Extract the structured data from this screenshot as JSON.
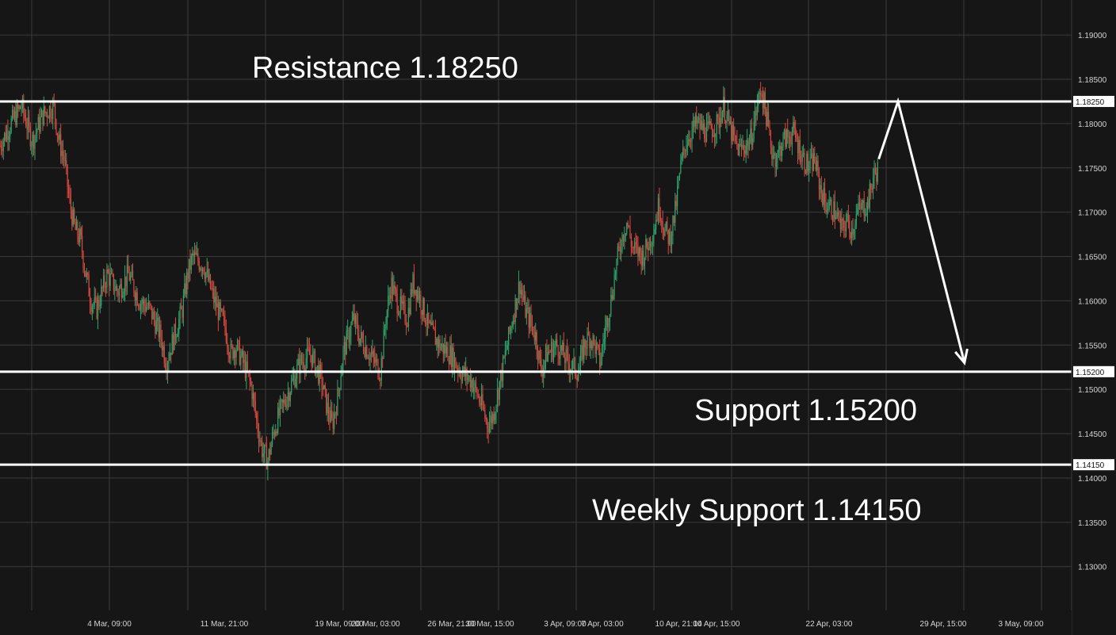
{
  "chart_data": {
    "type": "candlestick",
    "y_ticks": [
      {
        "value": 1.13,
        "label": "1.13000"
      },
      {
        "value": 1.135,
        "label": "1.13500"
      },
      {
        "value": 1.14,
        "label": "1.14000"
      },
      {
        "value": 1.145,
        "label": "1.14500"
      },
      {
        "value": 1.15,
        "label": "1.15000"
      },
      {
        "value": 1.155,
        "label": "1.15500"
      },
      {
        "value": 1.16,
        "label": "1.16000"
      },
      {
        "value": 1.165,
        "label": "1.16500"
      },
      {
        "value": 1.17,
        "label": "1.17000"
      },
      {
        "value": 1.175,
        "label": "1.17500"
      },
      {
        "value": 1.18,
        "label": "1.18000"
      },
      {
        "value": 1.185,
        "label": "1.18500"
      },
      {
        "value": 1.19,
        "label": "1.19000"
      }
    ],
    "ylim": [
      1.1255,
      1.1935
    ],
    "x_ticks": [
      "4 Mar, 09:00",
      "11 Mar, 21:00",
      "19 Mar, 09:00",
      "20 Mar, 03:00",
      "26 Mar, 21:00",
      "30 Mar, 15:00",
      "3 Apr, 09:00",
      "7 Apr, 03:00",
      "10 Apr, 21:00",
      "14 Apr, 15:00",
      "22 Apr, 03:00",
      "29 Apr, 15:00",
      "3 May, 09:00"
    ],
    "levels": [
      {
        "name": "resistance",
        "value": 1.1825,
        "badge": "1.18250",
        "annotation": "Resistance 1.18250"
      },
      {
        "name": "support",
        "value": 1.152,
        "badge": "1.15200",
        "annotation": "Support 1.15200"
      },
      {
        "name": "weekly-support",
        "value": 1.1415,
        "badge": "1.14150",
        "annotation": "Weekly Support 1.14150"
      }
    ],
    "price_path": [
      {
        "x": 0,
        "y": 1.1775
      },
      {
        "x": 0.01,
        "y": 1.18
      },
      {
        "x": 0.02,
        "y": 1.182
      },
      {
        "x": 0.03,
        "y": 1.178
      },
      {
        "x": 0.04,
        "y": 1.181
      },
      {
        "x": 0.05,
        "y": 1.182
      },
      {
        "x": 0.055,
        "y": 1.178
      },
      {
        "x": 0.06,
        "y": 1.176
      },
      {
        "x": 0.065,
        "y": 1.171
      },
      {
        "x": 0.07,
        "y": 1.168
      },
      {
        "x": 0.075,
        "y": 1.167
      },
      {
        "x": 0.08,
        "y": 1.163
      },
      {
        "x": 0.085,
        "y": 1.16
      },
      {
        "x": 0.09,
        "y": 1.159
      },
      {
        "x": 0.1,
        "y": 1.163
      },
      {
        "x": 0.11,
        "y": 1.161
      },
      {
        "x": 0.12,
        "y": 1.163
      },
      {
        "x": 0.13,
        "y": 1.16
      },
      {
        "x": 0.14,
        "y": 1.159
      },
      {
        "x": 0.15,
        "y": 1.156
      },
      {
        "x": 0.155,
        "y": 1.153
      },
      {
        "x": 0.16,
        "y": 1.155
      },
      {
        "x": 0.17,
        "y": 1.159
      },
      {
        "x": 0.175,
        "y": 1.163
      },
      {
        "x": 0.18,
        "y": 1.165
      },
      {
        "x": 0.19,
        "y": 1.164
      },
      {
        "x": 0.2,
        "y": 1.16
      },
      {
        "x": 0.21,
        "y": 1.157
      },
      {
        "x": 0.215,
        "y": 1.154
      },
      {
        "x": 0.22,
        "y": 1.155
      },
      {
        "x": 0.23,
        "y": 1.152
      },
      {
        "x": 0.235,
        "y": 1.15
      },
      {
        "x": 0.24,
        "y": 1.146
      },
      {
        "x": 0.245,
        "y": 1.143
      },
      {
        "x": 0.25,
        "y": 1.142
      },
      {
        "x": 0.255,
        "y": 1.145
      },
      {
        "x": 0.26,
        "y": 1.147
      },
      {
        "x": 0.27,
        "y": 1.15
      },
      {
        "x": 0.28,
        "y": 1.153
      },
      {
        "x": 0.29,
        "y": 1.154
      },
      {
        "x": 0.3,
        "y": 1.151
      },
      {
        "x": 0.305,
        "y": 1.148
      },
      {
        "x": 0.31,
        "y": 1.146
      },
      {
        "x": 0.315,
        "y": 1.149
      },
      {
        "x": 0.32,
        "y": 1.154
      },
      {
        "x": 0.33,
        "y": 1.158
      },
      {
        "x": 0.335,
        "y": 1.156
      },
      {
        "x": 0.34,
        "y": 1.155
      },
      {
        "x": 0.35,
        "y": 1.153
      },
      {
        "x": 0.355,
        "y": 1.152
      },
      {
        "x": 0.36,
        "y": 1.158
      },
      {
        "x": 0.365,
        "y": 1.162
      },
      {
        "x": 0.37,
        "y": 1.16
      },
      {
        "x": 0.38,
        "y": 1.158
      },
      {
        "x": 0.385,
        "y": 1.162
      },
      {
        "x": 0.39,
        "y": 1.161
      },
      {
        "x": 0.4,
        "y": 1.157
      },
      {
        "x": 0.41,
        "y": 1.155
      },
      {
        "x": 0.42,
        "y": 1.154
      },
      {
        "x": 0.43,
        "y": 1.152
      },
      {
        "x": 0.44,
        "y": 1.151
      },
      {
        "x": 0.45,
        "y": 1.148
      },
      {
        "x": 0.455,
        "y": 1.146
      },
      {
        "x": 0.46,
        "y": 1.147
      },
      {
        "x": 0.47,
        "y": 1.153
      },
      {
        "x": 0.475,
        "y": 1.156
      },
      {
        "x": 0.48,
        "y": 1.159
      },
      {
        "x": 0.485,
        "y": 1.162
      },
      {
        "x": 0.49,
        "y": 1.159
      },
      {
        "x": 0.5,
        "y": 1.156
      },
      {
        "x": 0.505,
        "y": 1.152
      },
      {
        "x": 0.51,
        "y": 1.154
      },
      {
        "x": 0.52,
        "y": 1.155
      },
      {
        "x": 0.53,
        "y": 1.153
      },
      {
        "x": 0.54,
        "y": 1.152
      },
      {
        "x": 0.545,
        "y": 1.155
      },
      {
        "x": 0.55,
        "y": 1.156
      },
      {
        "x": 0.555,
        "y": 1.155
      },
      {
        "x": 0.56,
        "y": 1.153
      },
      {
        "x": 0.565,
        "y": 1.157
      },
      {
        "x": 0.57,
        "y": 1.16
      },
      {
        "x": 0.575,
        "y": 1.164
      },
      {
        "x": 0.58,
        "y": 1.167
      },
      {
        "x": 0.585,
        "y": 1.169
      },
      {
        "x": 0.59,
        "y": 1.166
      },
      {
        "x": 0.6,
        "y": 1.165
      },
      {
        "x": 0.61,
        "y": 1.168
      },
      {
        "x": 0.615,
        "y": 1.171
      },
      {
        "x": 0.62,
        "y": 1.168
      },
      {
        "x": 0.625,
        "y": 1.167
      },
      {
        "x": 0.63,
        "y": 1.17
      },
      {
        "x": 0.635,
        "y": 1.175
      },
      {
        "x": 0.64,
        "y": 1.178
      },
      {
        "x": 0.65,
        "y": 1.18
      },
      {
        "x": 0.66,
        "y": 1.179
      },
      {
        "x": 0.67,
        "y": 1.18
      },
      {
        "x": 0.675,
        "y": 1.182
      },
      {
        "x": 0.68,
        "y": 1.18
      },
      {
        "x": 0.685,
        "y": 1.178
      },
      {
        "x": 0.69,
        "y": 1.177
      },
      {
        "x": 0.7,
        "y": 1.178
      },
      {
        "x": 0.705,
        "y": 1.181
      },
      {
        "x": 0.71,
        "y": 1.184
      },
      {
        "x": 0.715,
        "y": 1.181
      },
      {
        "x": 0.72,
        "y": 1.177
      },
      {
        "x": 0.725,
        "y": 1.176
      },
      {
        "x": 0.73,
        "y": 1.178
      },
      {
        "x": 0.74,
        "y": 1.179
      },
      {
        "x": 0.75,
        "y": 1.176
      },
      {
        "x": 0.755,
        "y": 1.175
      },
      {
        "x": 0.76,
        "y": 1.176
      },
      {
        "x": 0.765,
        "y": 1.173
      },
      {
        "x": 0.77,
        "y": 1.171
      },
      {
        "x": 0.78,
        "y": 1.17
      },
      {
        "x": 0.785,
        "y": 1.168
      },
      {
        "x": 0.79,
        "y": 1.169
      },
      {
        "x": 0.795,
        "y": 1.168
      },
      {
        "x": 0.8,
        "y": 1.17
      },
      {
        "x": 0.81,
        "y": 1.171
      },
      {
        "x": 0.815,
        "y": 1.174
      },
      {
        "x": 0.82,
        "y": 1.175
      }
    ],
    "forecast": [
      {
        "x": 0.82,
        "y": 1.176
      },
      {
        "x": 0.838,
        "y": 1.1825
      },
      {
        "x": 0.9,
        "y": 1.153
      }
    ]
  }
}
